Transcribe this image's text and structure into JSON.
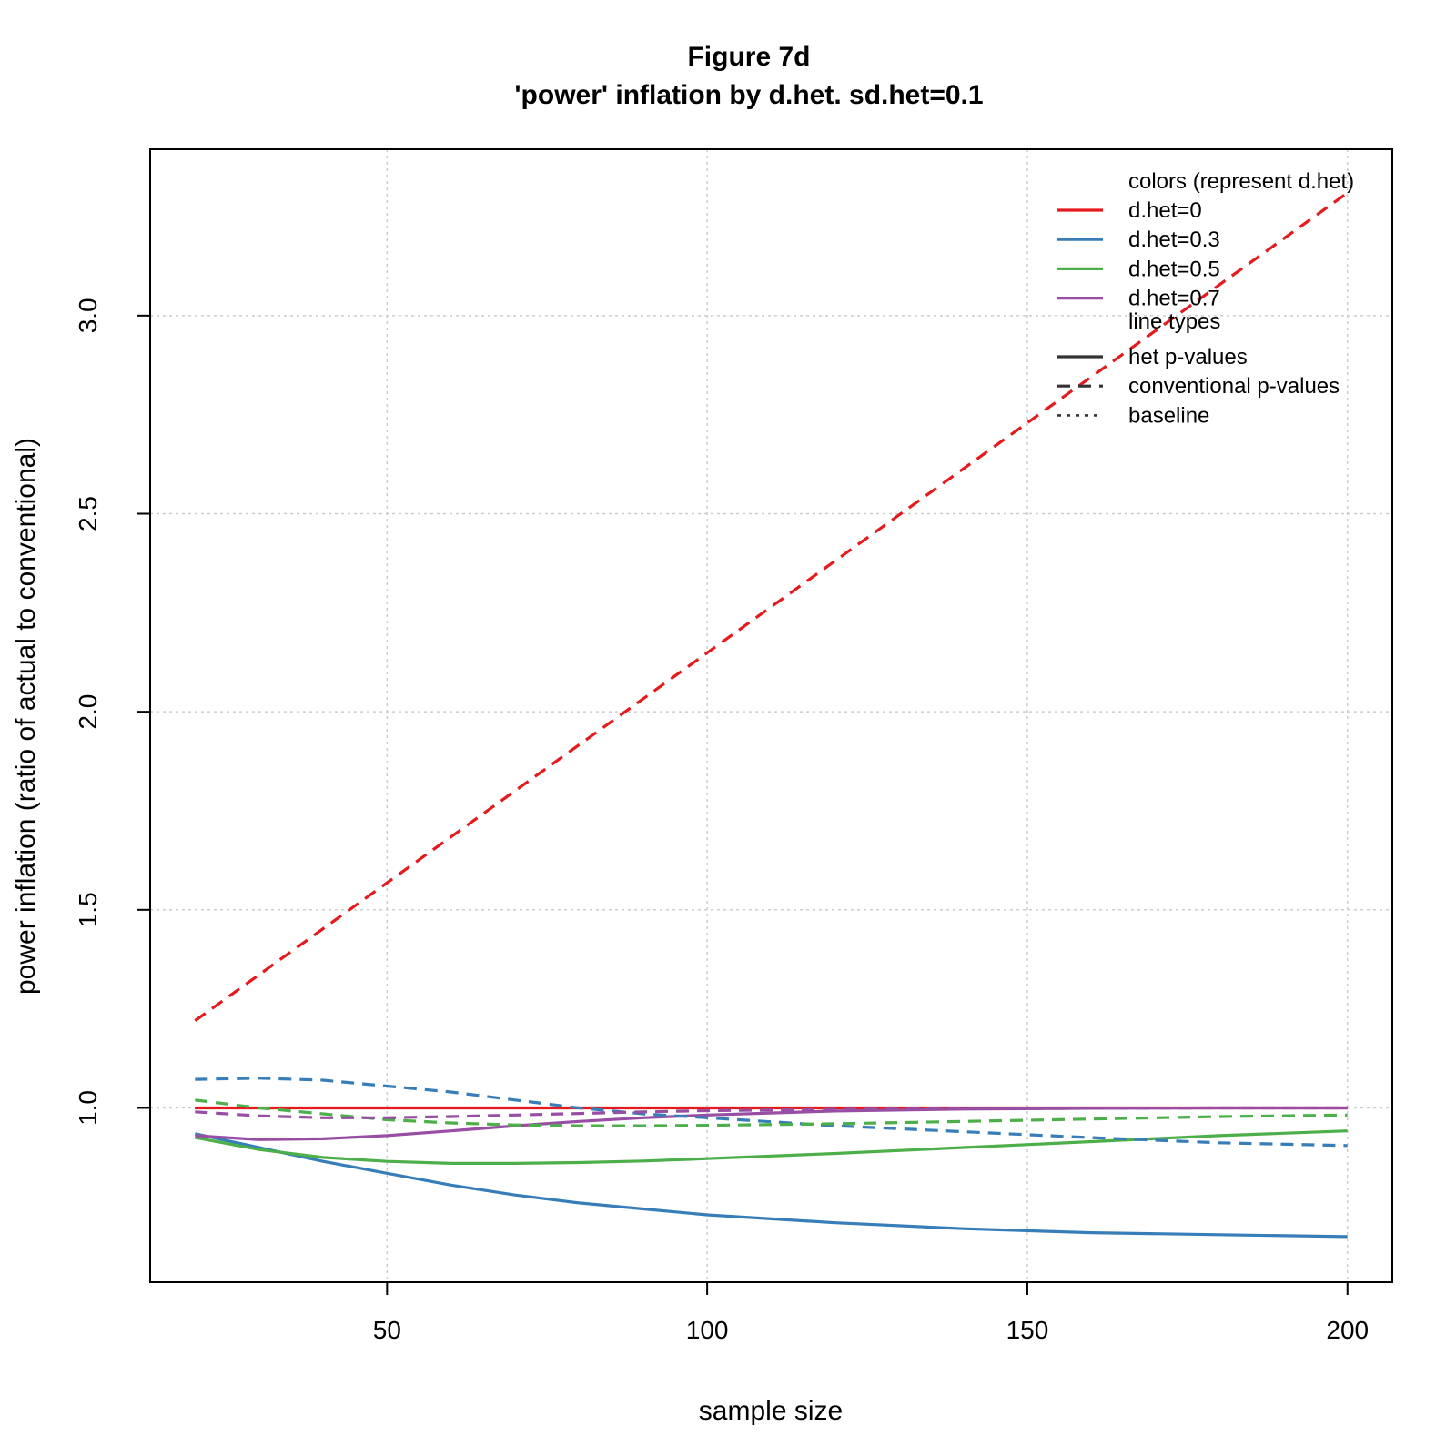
{
  "chart_data": {
    "type": "line",
    "title": "Figure 7d",
    "subtitle": "'power' inflation by d.het. sd.het=0.1",
    "xlabel": "sample size",
    "ylabel": "power inflation (ratio of actual to conventional)",
    "xlim": [
      13,
      207
    ],
    "ylim": [
      0.56,
      3.42
    ],
    "x_ticks": [
      50,
      100,
      150,
      200
    ],
    "y_ticks": [
      1.0,
      1.5,
      2.0,
      2.5,
      3.0
    ],
    "x_tick_labels": [
      "50",
      "100",
      "150",
      "200"
    ],
    "y_tick_labels": [
      "1.0",
      "1.5",
      "2.0",
      "2.5",
      "3.0"
    ],
    "grid": true,
    "legend_position": "top-right",
    "colors": {
      "d.het=0": "#e41a1c",
      "d.het=0.3": "#377eb8",
      "d.het=0.5": "#4daf4a",
      "d.het=0.7": "#984ea3",
      "black": "#333333"
    },
    "legend": {
      "colors_header": "colors (represent d.het)",
      "color_entries": [
        {
          "label": "d.het=0",
          "color": "#e41a1c"
        },
        {
          "label": "d.het=0.3",
          "color": "#377eb8"
        },
        {
          "label": "d.het=0.5",
          "color": "#4daf4a"
        },
        {
          "label": "d.het=0.7",
          "color": "#984ea3"
        }
      ],
      "linetype_header": "line types",
      "linetype_entries": [
        {
          "label": "het p-values",
          "dash": "solid"
        },
        {
          "label": "conventional p-values",
          "dash": "dashed"
        },
        {
          "label": "baseline",
          "dash": "dotted"
        }
      ]
    },
    "series": [
      {
        "group": "d.het=0",
        "linetype": "dashed",
        "color": "#e41a1c",
        "x": [
          20,
          200
        ],
        "y": [
          1.22,
          3.31
        ]
      },
      {
        "group": "d.het=0",
        "linetype": "solid",
        "color": "#e41a1c",
        "x": [
          20,
          200
        ],
        "y": [
          1.0,
          1.0
        ]
      },
      {
        "group": "d.het=0",
        "linetype": "dotted",
        "color": "#e41a1c",
        "x": [
          20,
          200
        ],
        "y": [
          1.0,
          1.0
        ]
      },
      {
        "group": "d.het=0.3",
        "linetype": "solid",
        "color": "#377eb8",
        "x": [
          20,
          30,
          40,
          50,
          60,
          70,
          80,
          90,
          100,
          120,
          140,
          160,
          180,
          200
        ],
        "y": [
          0.935,
          0.9,
          0.865,
          0.835,
          0.805,
          0.78,
          0.76,
          0.745,
          0.73,
          0.71,
          0.695,
          0.685,
          0.68,
          0.675
        ]
      },
      {
        "group": "d.het=0.3",
        "linetype": "dashed",
        "color": "#377eb8",
        "x": [
          20,
          30,
          40,
          50,
          60,
          70,
          80,
          90,
          100,
          120,
          140,
          160,
          180,
          200
        ],
        "y": [
          1.072,
          1.075,
          1.07,
          1.055,
          1.04,
          1.02,
          1.0,
          0.985,
          0.975,
          0.955,
          0.94,
          0.925,
          0.912,
          0.905
        ]
      },
      {
        "group": "d.het=0.3",
        "linetype": "dotted",
        "color": "#377eb8",
        "x": [
          20,
          200
        ],
        "y": [
          1.0,
          1.0
        ]
      },
      {
        "group": "d.het=0.5",
        "linetype": "solid",
        "color": "#4daf4a",
        "x": [
          20,
          30,
          40,
          50,
          60,
          70,
          80,
          90,
          100,
          120,
          140,
          160,
          180,
          200
        ],
        "y": [
          0.925,
          0.895,
          0.875,
          0.865,
          0.86,
          0.86,
          0.862,
          0.866,
          0.872,
          0.885,
          0.9,
          0.915,
          0.93,
          0.942
        ]
      },
      {
        "group": "d.het=0.5",
        "linetype": "dashed",
        "color": "#4daf4a",
        "x": [
          20,
          30,
          40,
          50,
          60,
          70,
          80,
          90,
          100,
          120,
          140,
          160,
          180,
          200
        ],
        "y": [
          1.02,
          1.0,
          0.985,
          0.97,
          0.962,
          0.957,
          0.955,
          0.955,
          0.956,
          0.96,
          0.966,
          0.972,
          0.978,
          0.982
        ]
      },
      {
        "group": "d.het=0.5",
        "linetype": "dotted",
        "color": "#4daf4a",
        "x": [
          20,
          200
        ],
        "y": [
          1.0,
          1.0
        ]
      },
      {
        "group": "d.het=0.7",
        "linetype": "solid",
        "color": "#984ea3",
        "x": [
          20,
          30,
          40,
          50,
          60,
          70,
          80,
          90,
          100,
          120,
          140,
          160,
          180,
          200
        ],
        "y": [
          0.93,
          0.92,
          0.922,
          0.93,
          0.942,
          0.955,
          0.966,
          0.975,
          0.982,
          0.992,
          0.997,
          0.999,
          1.0,
          1.0
        ]
      },
      {
        "group": "d.het=0.7",
        "linetype": "dashed",
        "color": "#984ea3",
        "x": [
          20,
          30,
          40,
          50,
          60,
          70,
          80,
          90,
          100,
          120,
          140,
          160,
          180,
          200
        ],
        "y": [
          0.99,
          0.98,
          0.975,
          0.975,
          0.978,
          0.982,
          0.986,
          0.99,
          0.993,
          0.996,
          0.998,
          0.999,
          1.0,
          1.0
        ]
      },
      {
        "group": "d.het=0.7",
        "linetype": "dotted",
        "color": "#984ea3",
        "x": [
          20,
          200
        ],
        "y": [
          1.0,
          1.0
        ]
      }
    ]
  }
}
